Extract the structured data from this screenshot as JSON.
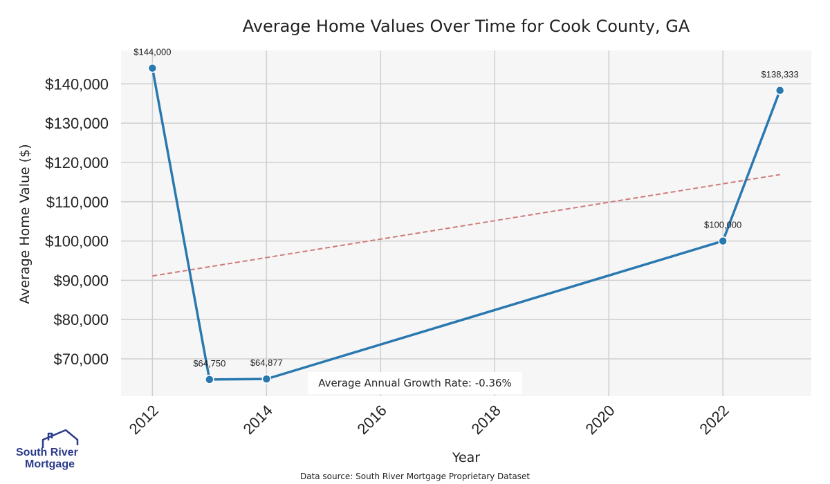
{
  "chart_data": {
    "type": "line",
    "title": "Average Home Values Over Time for Cook County, GA",
    "xlabel": "Year",
    "ylabel": "Average Home Value ($)",
    "xlim": [
      2011.45,
      2023.55
    ],
    "ylim": [
      60500,
      148500
    ],
    "x_ticks": [
      2012,
      2014,
      2016,
      2018,
      2020,
      2022
    ],
    "y_ticks": [
      70000,
      80000,
      90000,
      100000,
      110000,
      120000,
      130000,
      140000
    ],
    "y_tick_labels": [
      "$70,000",
      "$80,000",
      "$90,000",
      "$100,000",
      "$110,000",
      "$120,000",
      "$130,000",
      "$140,000"
    ],
    "grid": true,
    "series": [
      {
        "name": "Average Home Value",
        "color": "#2a78b0",
        "x": [
          2012,
          2013,
          2014,
          2022,
          2023
        ],
        "values": [
          144000,
          64750,
          64877,
          100000,
          138333
        ],
        "labels": [
          "$144,000",
          "$64,750",
          "$64,877",
          "$100,000",
          "$138,333"
        ]
      },
      {
        "name": "Trend",
        "color": "#d07a7a",
        "style": "dashed",
        "x": [
          2012,
          2023
        ],
        "values": [
          91100,
          116900
        ]
      }
    ],
    "annotation": "Average Annual Growth Rate: -0.36%",
    "source": "Data source: South River Mortgage Proprietary Dataset"
  },
  "logo": {
    "line1": "South River",
    "line2": "Mortgage"
  }
}
